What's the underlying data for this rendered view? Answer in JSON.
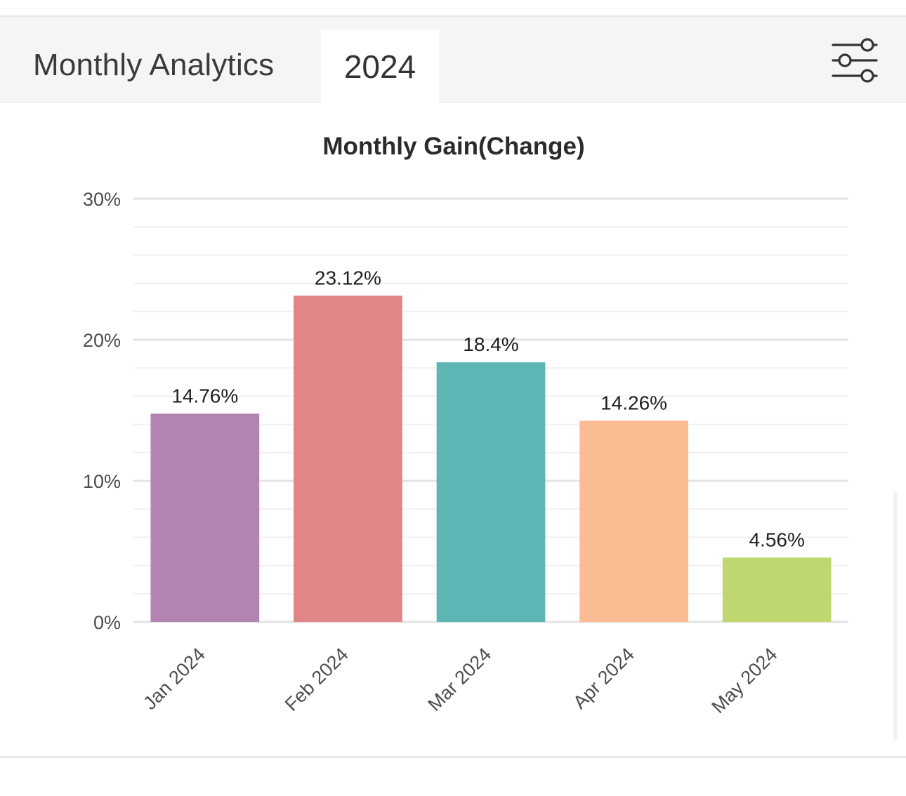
{
  "header": {
    "title": "Monthly Analytics",
    "year_tab": "2024",
    "filter_icon": "sliders-icon"
  },
  "chart_data": {
    "type": "bar",
    "title": "Monthly Gain(Change)",
    "xlabel": "",
    "ylabel": "",
    "categories": [
      "Jan 2024",
      "Feb 2024",
      "Mar 2024",
      "Apr 2024",
      "May 2024"
    ],
    "values": [
      14.76,
      23.12,
      18.4,
      14.26,
      4.56
    ],
    "value_labels": [
      "14.76%",
      "23.12%",
      "18.4%",
      "14.26%",
      "4.56%"
    ],
    "colors": [
      "#b284b2",
      "#e08686",
      "#5db5b4",
      "#fbbc94",
      "#bfd770"
    ],
    "ylim": [
      0,
      30
    ],
    "yticks": [
      0,
      10,
      20,
      30
    ],
    "ytick_labels": [
      "0%",
      "10%",
      "20%",
      "30%"
    ],
    "grid": true,
    "legend": "none"
  }
}
